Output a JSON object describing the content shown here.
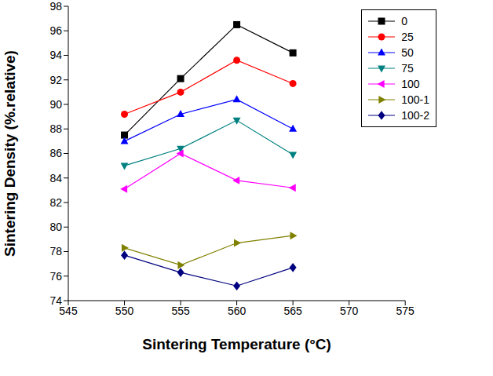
{
  "chart_data": {
    "type": "line",
    "x_label": "Sintering Temperature (°C)",
    "y_label": "Sintering Density (%.relative)",
    "x": [
      550,
      555,
      560,
      565
    ],
    "xlim": [
      545,
      575
    ],
    "xticks": [
      545,
      550,
      555,
      560,
      565,
      570,
      575
    ],
    "ylim": [
      74,
      98
    ],
    "yticks": [
      74,
      76,
      78,
      80,
      82,
      84,
      86,
      88,
      90,
      92,
      94,
      96,
      98
    ],
    "grid": false,
    "legend": "upper right",
    "series": [
      {
        "name": "0",
        "color": "#000000",
        "marker": "square",
        "line_style": "solid",
        "values": [
          87.5,
          92.1,
          96.5,
          94.2
        ]
      },
      {
        "name": "25",
        "color": "#ff0000",
        "marker": "circle",
        "line_style": "solid",
        "values": [
          89.2,
          91.0,
          93.6,
          91.7
        ]
      },
      {
        "name": "50",
        "color": "#0000ff",
        "marker": "triangle-up",
        "line_style": "solid",
        "values": [
          87.0,
          89.2,
          90.4,
          88.0
        ]
      },
      {
        "name": "75",
        "color": "#008080",
        "marker": "triangle-down",
        "line_style": "solid",
        "values": [
          85.0,
          86.4,
          88.7,
          85.9
        ]
      },
      {
        "name": "100",
        "color": "#ff00ff",
        "marker": "triangle-left",
        "line_style": "solid",
        "values": [
          83.1,
          86.0,
          83.8,
          83.2
        ]
      },
      {
        "name": "100-1",
        "color": "#808000",
        "marker": "triangle-right",
        "line_style": "solid",
        "values": [
          78.3,
          76.9,
          78.7,
          79.3
        ]
      },
      {
        "name": "100-2",
        "color": "#000080",
        "marker": "diamond",
        "line_style": "solid",
        "values": [
          77.7,
          76.3,
          75.2,
          76.7
        ]
      }
    ]
  }
}
